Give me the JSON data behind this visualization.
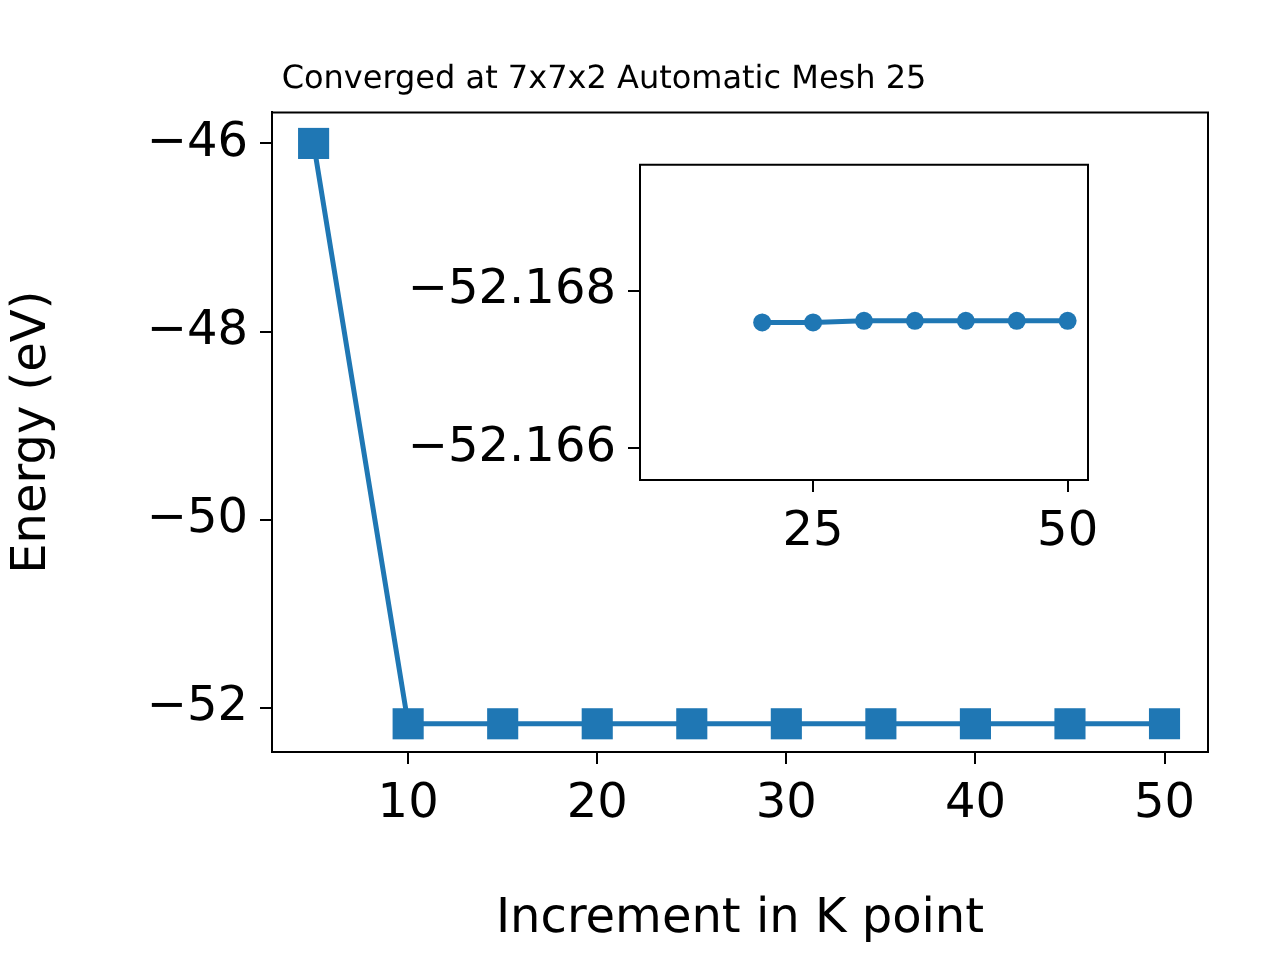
{
  "chart_data": [
    {
      "type": "line",
      "title": "Converged at 7x7x2 Automatic Mesh 25",
      "xlabel": "Increment in K point",
      "ylabel": "Energy (eV)",
      "x": [
        5,
        10,
        15,
        20,
        25,
        30,
        35,
        40,
        45,
        50
      ],
      "series": [
        {
          "color": "#1f77b4",
          "values": [
            -46,
            -52.17,
            -52.17,
            -52.17,
            -52.17,
            -52.17,
            -52.17,
            -52.17,
            -52.17,
            -52.17
          ]
        }
      ],
      "xlim": [
        2.8,
        52.3
      ],
      "xticks": [
        10,
        20,
        30,
        40,
        50
      ],
      "ylim": [
        -52.47,
        -45.67
      ],
      "yticks": [
        {
          "value": -52,
          "label": "−52"
        },
        {
          "value": -50,
          "label": "−50"
        },
        {
          "value": -48,
          "label": "−48"
        },
        {
          "value": -46,
          "label": "−46"
        }
      ],
      "grid": false,
      "legend": false,
      "marker": "square",
      "line_style": "solid"
    },
    {
      "type": "line",
      "x": [
        20,
        25,
        30,
        35,
        40,
        45,
        50
      ],
      "series": [
        {
          "color": "#1f77b4",
          "values": [
            -52.1676,
            -52.1676,
            -52.16762,
            -52.16762,
            -52.16762,
            -52.16762,
            -52.16762
          ]
        }
      ],
      "xlim": [
        8,
        52
      ],
      "xticks": [
        25,
        50
      ],
      "ylim": [
        -52.1656,
        -52.1696
      ],
      "yticks": [
        {
          "value": -52.166,
          "label": "−52.166"
        },
        {
          "value": -52.168,
          "label": "−52.168"
        }
      ],
      "grid": false,
      "legend": false,
      "marker": "circle",
      "line_style": "solid"
    }
  ]
}
